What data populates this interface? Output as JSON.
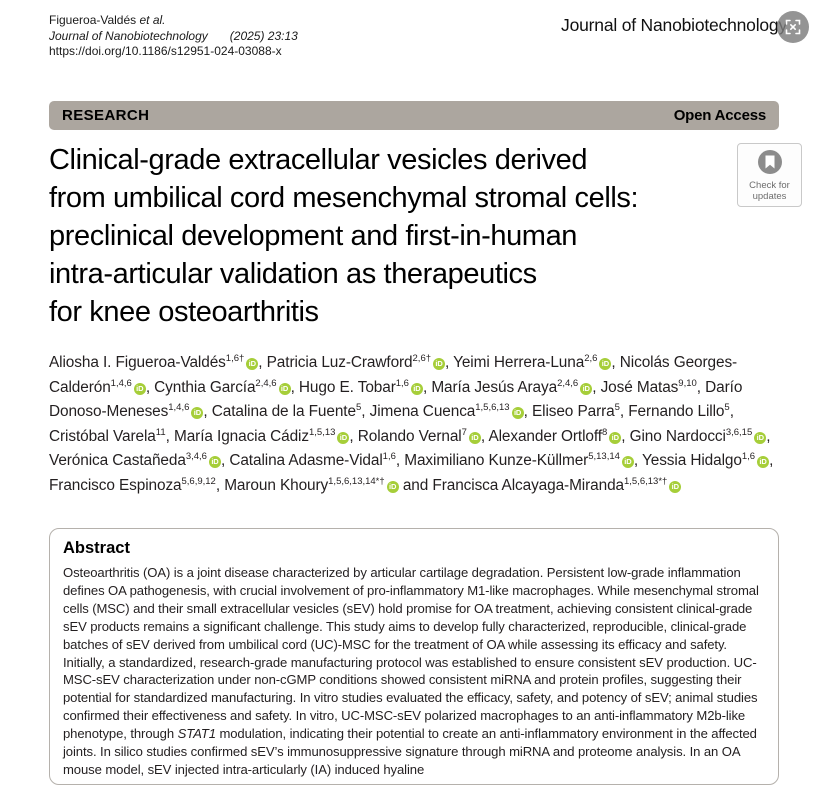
{
  "header": {
    "citation_author": "Figueroa-Valdés ",
    "citation_etal": "et al.",
    "citation_journal": "Journal of Nanobiotechnology",
    "citation_ref": "(2025) 23:13",
    "doi": "https://doi.org/10.1186/s12951-024-03088-x",
    "journal_name": "Journal of Nanobiotechnology"
  },
  "banner": {
    "type_label": "RESEARCH",
    "access_label": "Open Access"
  },
  "article": {
    "title": "Clinical-grade extracellular vesicles derived\nfrom umbilical cord mesenchymal stromal cells:\npreclinical development and first-in-human\nintra-articular validation as therapeutics\nfor knee osteoarthritis",
    "check_updates_line1": "Check for",
    "check_updates_line2": "updates",
    "and_connector": "and",
    "authors": [
      {
        "name": "Aliosha I. Figueroa-Valdés",
        "sup": "1,6†",
        "orcid": true
      },
      {
        "name": "Patricia Luz-Crawford",
        "sup": "2,6†",
        "orcid": true
      },
      {
        "name": "Yeimi Herrera-Luna",
        "sup": "2,6",
        "orcid": true
      },
      {
        "name": "Nicolás Georges-Calderón",
        "sup": "1,4,6",
        "orcid": true
      },
      {
        "name": "Cynthia García",
        "sup": "2,4,6",
        "orcid": true
      },
      {
        "name": "Hugo E. Tobar",
        "sup": "1,6",
        "orcid": true
      },
      {
        "name": "María Jesús Araya",
        "sup": "2,4,6",
        "orcid": true
      },
      {
        "name": "José Matas",
        "sup": "9,10",
        "orcid": false
      },
      {
        "name": "Darío Donoso-Meneses",
        "sup": "1,4,6",
        "orcid": true
      },
      {
        "name": "Catalina de la Fuente",
        "sup": "5",
        "orcid": false
      },
      {
        "name": "Jimena Cuenca",
        "sup": "1,5,6,13",
        "orcid": true
      },
      {
        "name": "Eliseo Parra",
        "sup": "5",
        "orcid": false
      },
      {
        "name": "Fernando Lillo",
        "sup": "5",
        "orcid": false
      },
      {
        "name": "Cristóbal Varela",
        "sup": "11",
        "orcid": false
      },
      {
        "name": "María Ignacia Cádiz",
        "sup": "1,5,13",
        "orcid": true
      },
      {
        "name": "Rolando Vernal",
        "sup": "7",
        "orcid": true
      },
      {
        "name": "Alexander Ortloff",
        "sup": "8",
        "orcid": true
      },
      {
        "name": "Gino Nardocci",
        "sup": "3,6,15",
        "orcid": true
      },
      {
        "name": "Verónica Castañeda",
        "sup": "3,4,6",
        "orcid": true
      },
      {
        "name": "Catalina Adasme-Vidal",
        "sup": "1,6",
        "orcid": false
      },
      {
        "name": "Maximiliano Kunze-Küllmer",
        "sup": "5,13,14",
        "orcid": true
      },
      {
        "name": "Yessia Hidalgo",
        "sup": "1,6",
        "orcid": true
      },
      {
        "name": "Francisco Espinoza",
        "sup": "5,6,9,12",
        "orcid": false
      },
      {
        "name": "Maroun Khoury",
        "sup": "1,5,6,13,14*†",
        "orcid": true
      },
      {
        "name": "Francisca Alcayaga-Miranda",
        "sup": "1,5,6,13*†",
        "orcid": true
      }
    ]
  },
  "abstract": {
    "heading": "Abstract",
    "body_pre": "Osteoarthritis (OA) is a joint disease characterized by articular cartilage degradation. Persistent low-grade inflammation defines OA pathogenesis, with crucial involvement of pro-inflammatory M1-like macrophages. While mesenchymal stromal cells (MSC) and their small extracellular vesicles (sEV) hold promise for OA treatment, achieving consistent clinical-grade sEV products remains a significant challenge. This study aims to develop fully characterized, reproducible, clinical-grade batches of sEV derived from umbilical cord (UC)-MSC for the treatment of OA while assessing its efficacy and safety. Initially, a standardized, research-grade manufacturing protocol was established to ensure consistent sEV production. UC-MSC-sEV characterization under non-cGMP conditions showed consistent miRNA and protein profiles, suggesting their potential for standardized manufacturing. In vitro studies evaluated the efficacy, safety, and potency of sEV; animal studies confirmed their effectiveness and safety. In vitro, UC-MSC-sEV polarized macrophages to an anti-inflammatory M2b-like phenotype, through ",
    "stat1": "STAT1",
    "body_post": " modulation, indicating their potential to create an anti-inflammatory environment in the affected joints. In silico studies confirmed sEV’s immunosuppressive signature through miRNA and proteome analysis. In an OA mouse model, sEV injected intra-articularly (IA) induced hyaline"
  },
  "colors": {
    "banner_bg": "#aca69f",
    "orcid_green": "#a6ce39",
    "abstract_border": "#b5b1ac",
    "crossmark_gray": "#8c8c8c"
  }
}
